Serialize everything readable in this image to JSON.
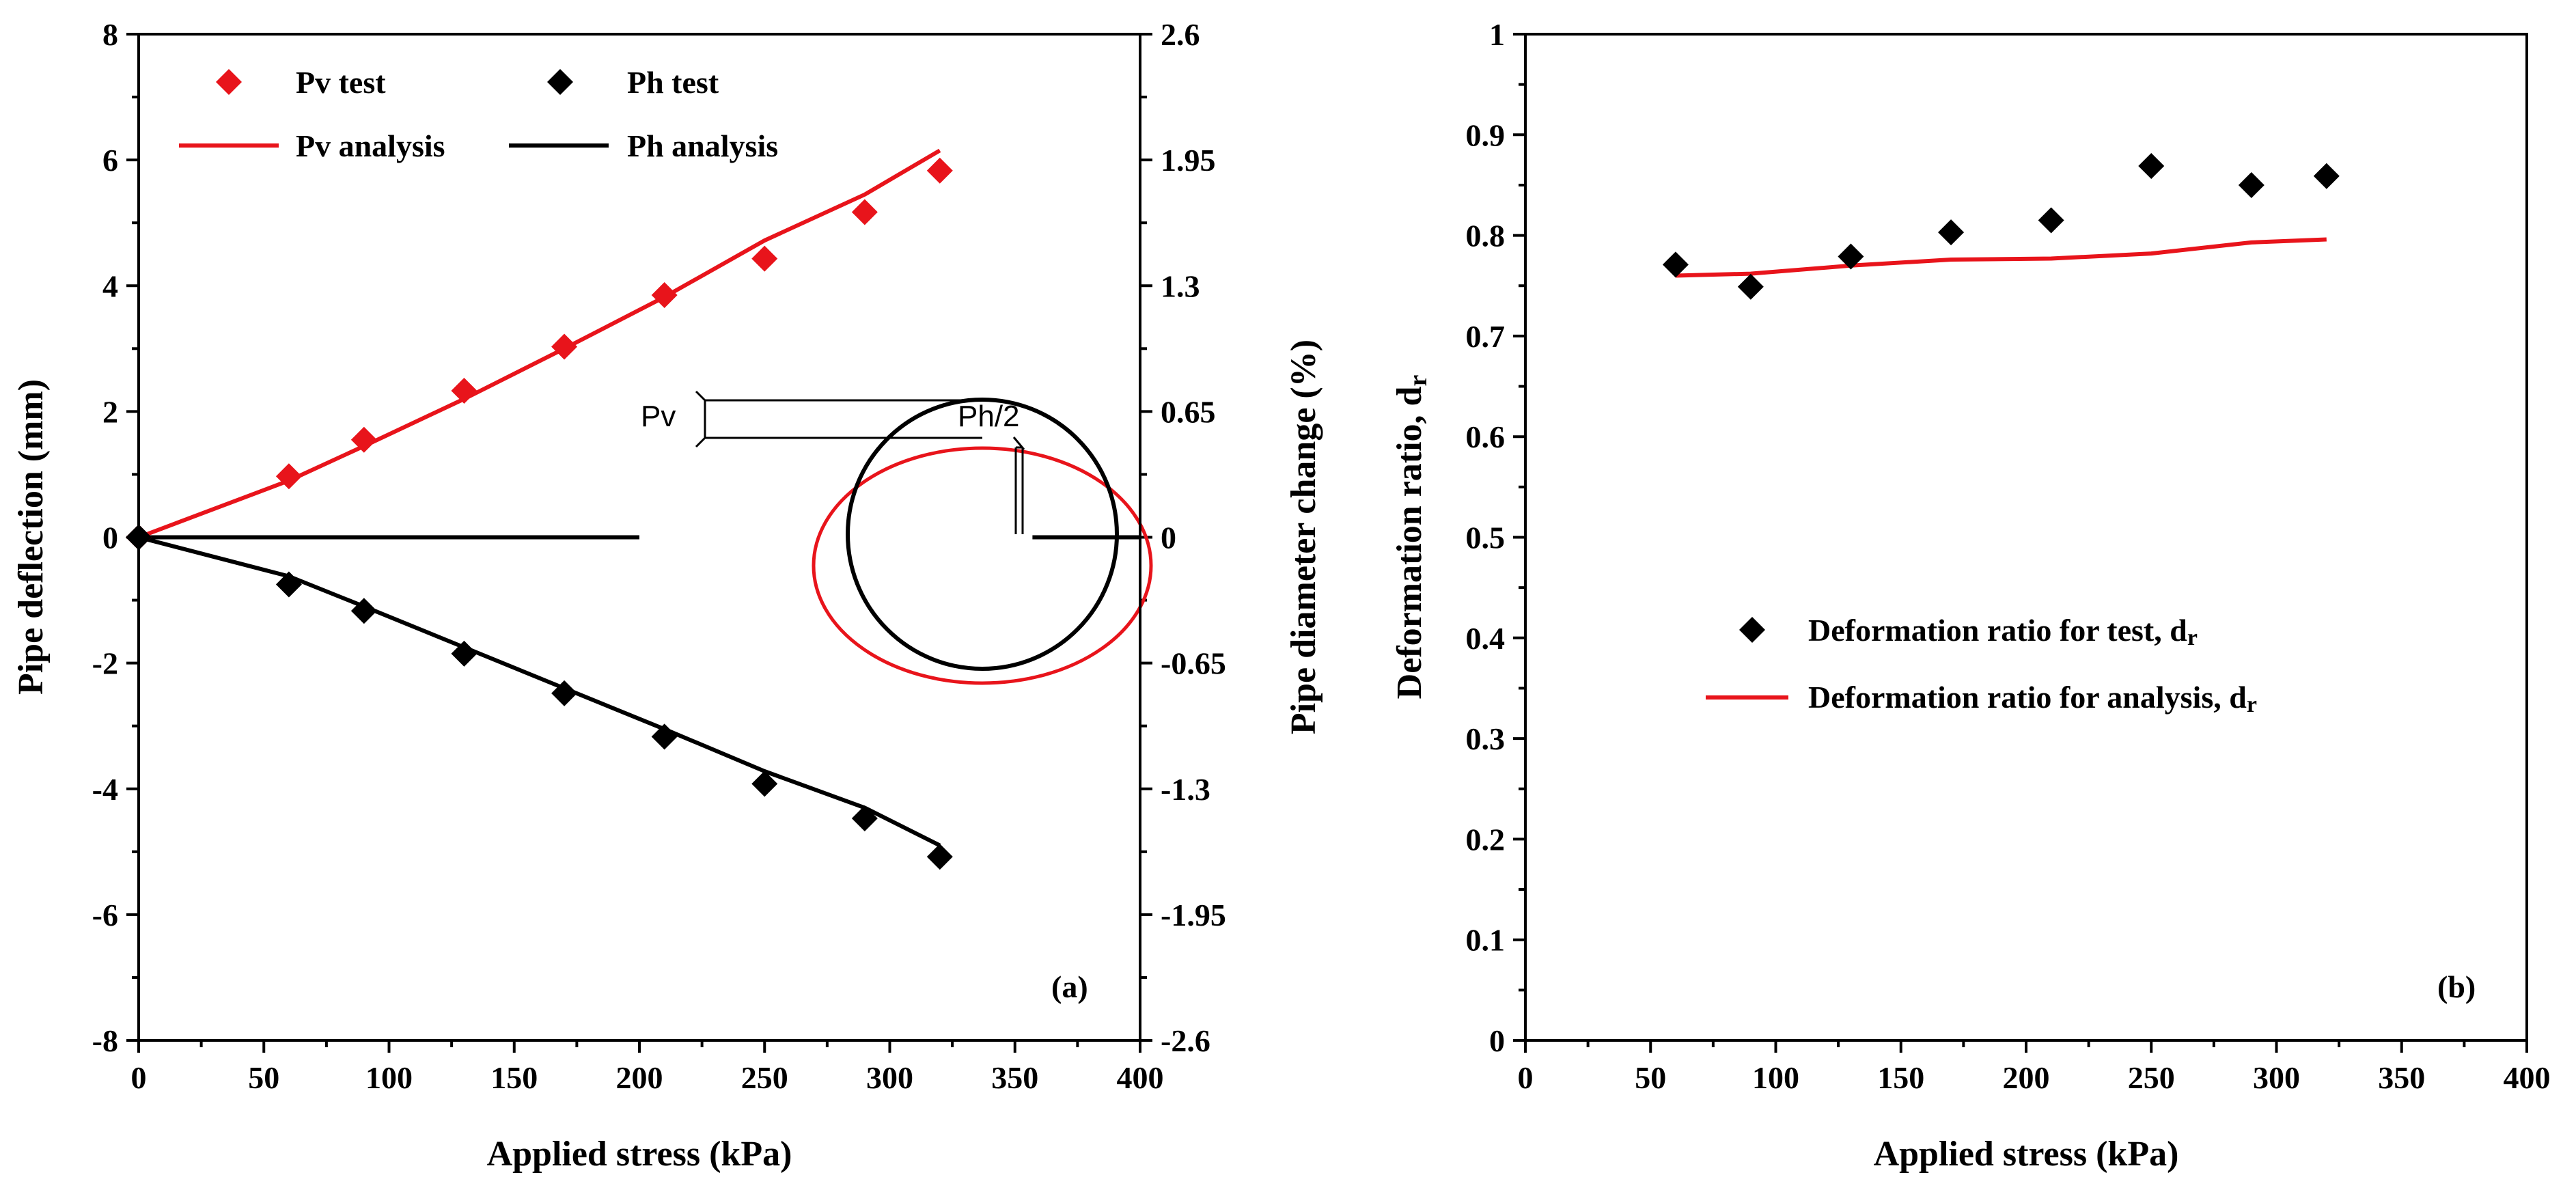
{
  "chart_data": [
    {
      "type": "line",
      "panel_label": "(a)",
      "xlabel": "Applied stress (kPa)",
      "ylabel": "Pipe deflection (mm)",
      "ylabel_right": "Pipe diameter change (%)",
      "xlim": [
        0,
        400
      ],
      "ylim": [
        -8,
        8
      ],
      "xticks": [
        "0",
        "50",
        "100",
        "150",
        "200",
        "250",
        "300",
        "350",
        "400"
      ],
      "yticks": [
        "-8",
        "-6",
        "-4",
        "-2",
        "0",
        "2",
        "4",
        "6",
        "8"
      ],
      "yticks_right": [
        "-2.6",
        "-1.95",
        "-1.3",
        "-0.65",
        "0",
        "0.65",
        "1.3",
        "1.95",
        "2.6"
      ],
      "legend": [
        "Pv test",
        "Ph test",
        "Pv analysis",
        "Ph analysis"
      ],
      "series": [
        {
          "name": "Pv test",
          "kind": "scatter",
          "marker": "diamond",
          "color": "#e8141b",
          "x": [
            0,
            60,
            90,
            130,
            170,
            210,
            250,
            290,
            320
          ],
          "y": [
            0,
            0.97,
            1.55,
            2.33,
            3.03,
            3.85,
            4.43,
            5.17,
            5.83
          ]
        },
        {
          "name": "Ph test",
          "kind": "scatter",
          "marker": "diamond",
          "color": "#000000",
          "x": [
            0,
            60,
            90,
            130,
            170,
            210,
            250,
            290,
            320
          ],
          "y": [
            0,
            -0.75,
            -1.17,
            -1.85,
            -2.48,
            -3.17,
            -3.92,
            -4.47,
            -5.08
          ]
        },
        {
          "name": "Pv analysis",
          "kind": "line",
          "color": "#e8141b",
          "x": [
            0,
            60,
            90,
            130,
            170,
            210,
            250,
            290,
            320
          ],
          "y": [
            0,
            0.9,
            1.45,
            2.2,
            3.0,
            3.82,
            4.72,
            5.45,
            6.15
          ]
        },
        {
          "name": "Ph analysis",
          "kind": "line",
          "color": "#000000",
          "x": [
            0,
            60,
            90,
            130,
            170,
            210,
            250,
            290,
            320
          ],
          "y": [
            0,
            -0.62,
            -1.1,
            -1.75,
            -2.4,
            -3.05,
            -3.72,
            -4.3,
            -4.9
          ]
        }
      ],
      "inset_labels": {
        "pv": "Pv",
        "ph": "Ph/2"
      }
    },
    {
      "type": "line",
      "panel_label": "(b)",
      "xlabel": "Applied stress (kPa)",
      "ylabel": "Deformation ratio, d",
      "ylabel_sub": "r",
      "xlim": [
        0,
        400
      ],
      "ylim": [
        0,
        1
      ],
      "xticks": [
        "0",
        "50",
        "100",
        "150",
        "200",
        "250",
        "300",
        "350",
        "400"
      ],
      "yticks": [
        "0",
        "0.1",
        "0.2",
        "0.3",
        "0.4",
        "0.5",
        "0.6",
        "0.7",
        "0.8",
        "0.9",
        "1"
      ],
      "legend": [
        "Deformation ratio for test, d",
        "Deformation ratio for analysis, d"
      ],
      "legend_sub": "r",
      "series": [
        {
          "name": "Deformation ratio for test",
          "kind": "scatter",
          "marker": "diamond",
          "color": "#000000",
          "x": [
            60,
            90,
            130,
            170,
            210,
            250,
            290,
            320
          ],
          "y": [
            0.771,
            0.749,
            0.779,
            0.803,
            0.815,
            0.869,
            0.85,
            0.859
          ]
        },
        {
          "name": "Deformation ratio for analysis",
          "kind": "line",
          "color": "#e8141b",
          "x": [
            60,
            90,
            130,
            170,
            210,
            250,
            290,
            320
          ],
          "y": [
            0.76,
            0.762,
            0.77,
            0.776,
            0.777,
            0.782,
            0.793,
            0.796
          ]
        }
      ]
    }
  ]
}
